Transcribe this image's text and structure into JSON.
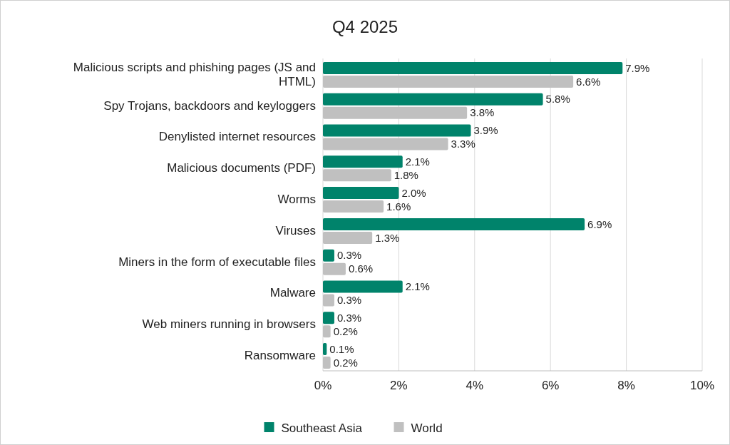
{
  "chart_data": {
    "type": "bar",
    "orientation": "horizontal",
    "title": "Q4 2025",
    "categories": [
      "Malicious scripts and phishing pages (JS and HTML)",
      "Spy Trojans, backdoors and keyloggers",
      "Denylisted internet resources",
      "Malicious documents (PDF)",
      "Worms",
      "Viruses",
      "Miners in the form of executable files",
      "Malware",
      "Web miners running in browsers",
      "Ransomware"
    ],
    "series": [
      {
        "name": "Southeast Asia",
        "color": "#00836b",
        "values": [
          7.9,
          5.8,
          3.9,
          2.1,
          2.0,
          6.9,
          0.3,
          2.1,
          0.3,
          0.1
        ],
        "value_labels": [
          "7.9%",
          "5.8%",
          "3.9%",
          "2.1%",
          "2.0%",
          "6.9%",
          "0.3%",
          "2.1%",
          "0.3%",
          "0.1%"
        ]
      },
      {
        "name": "World",
        "color": "#c0c0c0",
        "values": [
          6.6,
          3.8,
          3.3,
          1.8,
          1.6,
          1.3,
          0.6,
          0.3,
          0.2,
          0.2
        ],
        "value_labels": [
          "6.6%",
          "3.8%",
          "3.3%",
          "1.8%",
          "1.6%",
          "1.3%",
          "0.6%",
          "0.3%",
          "0.2%",
          "0.2%"
        ]
      }
    ],
    "xlim": [
      0,
      10
    ],
    "xticks": [
      {
        "value": 0,
        "label": "0%"
      },
      {
        "value": 2,
        "label": "2%"
      },
      {
        "value": 4,
        "label": "4%"
      },
      {
        "value": 6,
        "label": "6%"
      },
      {
        "value": 8,
        "label": "8%"
      },
      {
        "value": 10,
        "label": "10%"
      }
    ],
    "grid": "x",
    "legend": "bottom"
  }
}
